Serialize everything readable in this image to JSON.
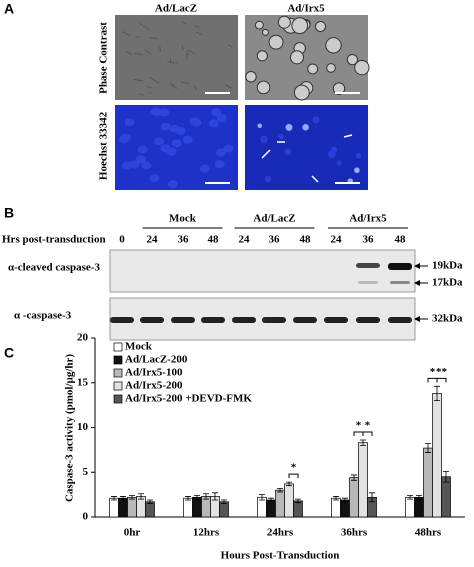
{
  "panel_a": {
    "label": "A",
    "columns": [
      "Ad/LacZ",
      "Ad/Irx5"
    ],
    "rows": [
      "Phase Contrast",
      "Hoechst 33342"
    ]
  },
  "panel_b": {
    "label": "B",
    "groups": [
      "Mock",
      "Ad/LacZ",
      "Ad/Irx5"
    ],
    "row_header": "Hrs post-transduction",
    "times": [
      "0",
      "24",
      "36",
      "48",
      "24",
      "36",
      "48",
      "24",
      "36",
      "48"
    ],
    "blots": [
      {
        "name": "α-cleaved caspase-3",
        "bands": [
          "19kDa",
          "17kDa"
        ]
      },
      {
        "name": "α -caspase-3",
        "bands": [
          "32kDa"
        ]
      }
    ]
  },
  "chart_data": {
    "label": "C",
    "type": "bar",
    "y_label": "Caspase-3 activity (pmol/µg/hr)",
    "x_label": "Hours Post-Transduction",
    "categories": [
      "0hr",
      "12hrs",
      "24hrs",
      "36hrs",
      "48hrs"
    ],
    "ylim": [
      0,
      20
    ],
    "yticks": [
      0,
      5,
      10,
      15,
      20
    ],
    "legend": "upper-left",
    "series": [
      {
        "name": "Mock",
        "color": "#ffffff",
        "values": [
          2.1,
          2.1,
          2.2,
          2.1,
          2.2
        ],
        "errors": [
          0.2,
          0.2,
          0.3,
          0.2,
          0.2
        ]
      },
      {
        "name": "Ad/LacZ-200",
        "color": "#111111",
        "values": [
          2.1,
          2.2,
          1.9,
          1.9,
          2.2
        ],
        "errors": [
          0.2,
          0.2,
          0.2,
          0.2,
          0.2
        ]
      },
      {
        "name": "Ad/Irx5-100",
        "color": "#b8b8b8",
        "values": [
          2.2,
          2.3,
          3.0,
          4.4,
          7.7
        ],
        "errors": [
          0.2,
          0.3,
          0.2,
          0.3,
          0.5
        ]
      },
      {
        "name": "Ad/Irx5-200",
        "color": "#e2e2e2",
        "values": [
          2.3,
          2.3,
          3.7,
          8.3,
          13.8
        ],
        "errors": [
          0.3,
          0.4,
          0.2,
          0.3,
          0.8
        ]
      },
      {
        "name": "Ad/Irx5-200 +DEVD-FMK",
        "color": "#555555",
        "values": [
          1.7,
          1.7,
          1.8,
          2.2,
          4.5
        ],
        "errors": [
          0.2,
          0.2,
          0.2,
          0.5,
          0.6
        ]
      }
    ],
    "annotations": [
      {
        "text": "*",
        "category": "24hrs",
        "between": [
          "Ad/Irx5-200",
          "Ad/Irx5-200 +DEVD-FMK"
        ]
      },
      {
        "text": "*",
        "category": "36hrs",
        "between": [
          "Ad/Irx5-100",
          "Ad/Irx5-200"
        ]
      },
      {
        "text": "*",
        "category": "36hrs",
        "between": [
          "Ad/Irx5-200",
          "Ad/Irx5-200 +DEVD-FMK"
        ]
      },
      {
        "text": "*",
        "category": "48hrs",
        "between": [
          "Ad/Irx5-100",
          "Ad/Irx5-200"
        ]
      },
      {
        "text": "**",
        "category": "48hrs",
        "between": [
          "Ad/Irx5-200",
          "Ad/Irx5-200 +DEVD-FMK"
        ]
      }
    ]
  }
}
